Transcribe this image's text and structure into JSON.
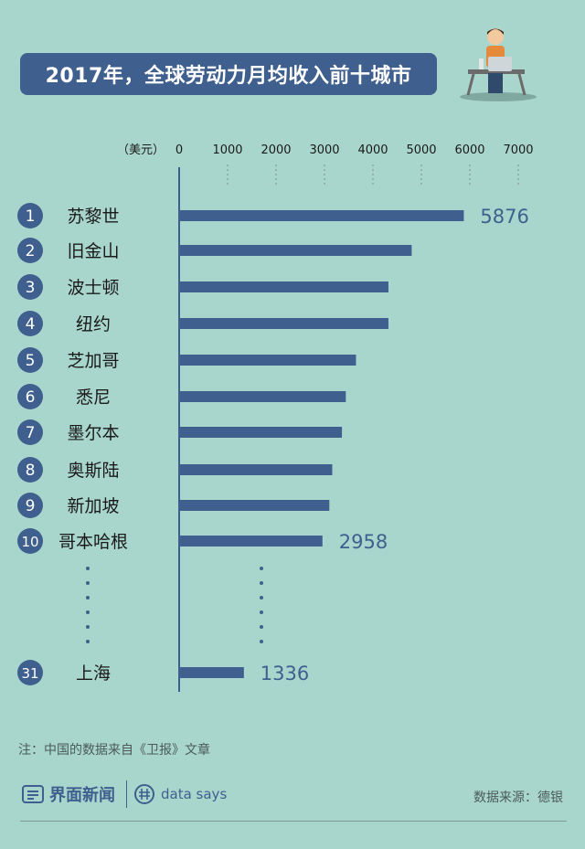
{
  "title": "2017年，全球劳动力月均收入前十城市",
  "note": "注：中国的数据来自《卫报》文章",
  "source": "数据来源：德银",
  "brand": {
    "name": "界面新闻",
    "secondary": "data says"
  },
  "colors": {
    "background": "#a9d6cc",
    "bar": "#3f5f8e",
    "axis": "#3f5f8e",
    "text": "#1a1a1a",
    "value_text": "#3f5f8e"
  },
  "chart_data": {
    "type": "bar",
    "orientation": "horizontal",
    "unit_label": "（美元）",
    "xlim": [
      0,
      7000
    ],
    "ticks": [
      0,
      1000,
      2000,
      3000,
      4000,
      5000,
      6000,
      7000
    ],
    "categories": [
      {
        "rank": "1",
        "name": "苏黎世",
        "value": 5876,
        "label": "5876"
      },
      {
        "rank": "2",
        "name": "旧金山",
        "value": 4800
      },
      {
        "rank": "3",
        "name": "波士顿",
        "value": 4320
      },
      {
        "rank": "4",
        "name": "纽约",
        "value": 4320
      },
      {
        "rank": "5",
        "name": "芝加哥",
        "value": 3650
      },
      {
        "rank": "6",
        "name": "悉尼",
        "value": 3440
      },
      {
        "rank": "7",
        "name": "墨尔本",
        "value": 3360
      },
      {
        "rank": "8",
        "name": "奥斯陆",
        "value": 3160
      },
      {
        "rank": "9",
        "name": "新加坡",
        "value": 3100
      },
      {
        "rank": "10",
        "name": "哥本哈根",
        "value": 2958,
        "label": "2958"
      },
      {
        "rank": "31",
        "name": "上海",
        "value": 1336,
        "label": "1336"
      }
    ],
    "grid": false,
    "legend": "none"
  }
}
